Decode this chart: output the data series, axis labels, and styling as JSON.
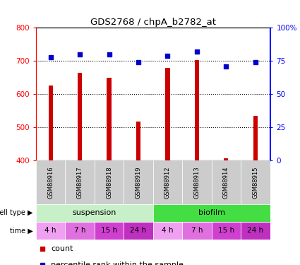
{
  "title": "GDS2768 / chpA_b2782_at",
  "samples": [
    "GSM88916",
    "GSM88917",
    "GSM88918",
    "GSM88919",
    "GSM88912",
    "GSM88913",
    "GSM88914",
    "GSM88915"
  ],
  "counts": [
    625,
    665,
    650,
    517,
    680,
    703,
    407,
    535
  ],
  "percentiles": [
    78,
    80,
    80,
    74,
    79,
    82,
    71,
    74
  ],
  "ylim_left": [
    400,
    800
  ],
  "ylim_right": [
    0,
    100
  ],
  "yticks_left": [
    400,
    500,
    600,
    700,
    800
  ],
  "yticks_right": [
    0,
    25,
    50,
    75,
    100
  ],
  "cell_types": [
    {
      "label": "suspension",
      "start": 0,
      "end": 4,
      "color": "#c8f0c8"
    },
    {
      "label": "biofilm",
      "start": 4,
      "end": 8,
      "color": "#44dd44"
    }
  ],
  "times": [
    "4 h",
    "7 h",
    "15 h",
    "24 h",
    "4 h",
    "7 h",
    "15 h",
    "24 h"
  ],
  "time_colors_cycle": [
    "#f0a0f0",
    "#e070e0",
    "#d040d0",
    "#c030c0"
  ],
  "bar_color": "#cc0000",
  "dot_color": "#0000cc",
  "sample_bg_color": "#cccccc",
  "bar_base": 400,
  "bar_width": 0.15,
  "grid_lines": [
    500,
    600,
    700
  ],
  "legend_count_color": "#cc0000",
  "legend_pct_color": "#0000cc"
}
